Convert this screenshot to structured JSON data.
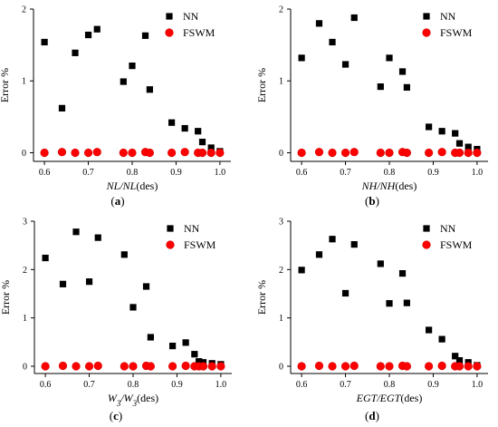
{
  "colors": {
    "nn": "#000000",
    "fswm": "#ff0000",
    "fswm_stroke": "#d40000",
    "axis": "#000000"
  },
  "chart_data": [
    {
      "type": "scatter",
      "panel_label": "(a)",
      "xlabel_parts": [
        {
          "text": "NL/NL",
          "italic": true
        },
        {
          "text": "(des)",
          "italic": false
        }
      ],
      "ylabel": "Error %",
      "xlim": [
        0.575,
        1.025
      ],
      "ylim": [
        -0.12,
        2.0
      ],
      "x_ticks": [
        0.6,
        0.7,
        0.8,
        0.9,
        1.0
      ],
      "x_tick_labels": [
        "0.6",
        "0.7",
        "0.8",
        "0.9",
        "1.0"
      ],
      "y_ticks": [
        0,
        1,
        2
      ],
      "y_tick_labels": [
        "0",
        "1",
        "2"
      ],
      "legend_position": "top-right",
      "series": [
        {
          "name": "NN",
          "marker": "square",
          "x": [
            0.6,
            0.64,
            0.67,
            0.7,
            0.72,
            0.78,
            0.8,
            0.83,
            0.84,
            0.89,
            0.92,
            0.95,
            0.96,
            0.98,
            1.0
          ],
          "y": [
            1.54,
            0.62,
            1.39,
            1.64,
            1.72,
            0.99,
            1.21,
            1.63,
            0.88,
            0.42,
            0.34,
            0.3,
            0.15,
            0.07,
            0.02
          ]
        },
        {
          "name": "FSWM",
          "marker": "circle",
          "x": [
            0.6,
            0.64,
            0.67,
            0.7,
            0.72,
            0.78,
            0.8,
            0.83,
            0.84,
            0.89,
            0.92,
            0.95,
            0.96,
            0.98,
            1.0
          ],
          "y": [
            0.0,
            0.01,
            0.0,
            0.0,
            0.01,
            0.0,
            0.0,
            0.01,
            0.0,
            0.0,
            0.01,
            0.0,
            0.0,
            0.0,
            0.0
          ]
        }
      ]
    },
    {
      "type": "scatter",
      "panel_label": "(b)",
      "xlabel_parts": [
        {
          "text": "NH/NH",
          "italic": true
        },
        {
          "text": "(des)",
          "italic": false
        }
      ],
      "ylabel": "Error %",
      "xlim": [
        0.575,
        1.025
      ],
      "ylim": [
        -0.12,
        2.0
      ],
      "x_ticks": [
        0.6,
        0.7,
        0.8,
        0.9,
        1.0
      ],
      "x_tick_labels": [
        "0.6",
        "0.7",
        "0.8",
        "0.9",
        "1.0"
      ],
      "y_ticks": [
        0,
        1,
        2
      ],
      "y_tick_labels": [
        "0",
        "1",
        "2"
      ],
      "legend_position": "top-right",
      "series": [
        {
          "name": "NN",
          "marker": "square",
          "x": [
            0.6,
            0.64,
            0.67,
            0.7,
            0.72,
            0.78,
            0.8,
            0.83,
            0.84,
            0.89,
            0.92,
            0.95,
            0.96,
            0.98,
            1.0
          ],
          "y": [
            1.32,
            1.8,
            1.54,
            1.23,
            1.88,
            0.92,
            1.32,
            1.13,
            0.91,
            0.36,
            0.3,
            0.27,
            0.13,
            0.08,
            0.05
          ]
        },
        {
          "name": "FSWM",
          "marker": "circle",
          "x": [
            0.6,
            0.64,
            0.67,
            0.7,
            0.72,
            0.78,
            0.8,
            0.83,
            0.84,
            0.89,
            0.92,
            0.95,
            0.96,
            0.98,
            1.0
          ],
          "y": [
            0.0,
            0.01,
            0.0,
            0.0,
            0.01,
            0.0,
            0.0,
            0.01,
            0.0,
            0.0,
            0.01,
            0.0,
            0.0,
            0.0,
            0.0
          ]
        }
      ]
    },
    {
      "type": "scatter",
      "panel_label": "(c)",
      "xlabel_parts": [
        {
          "text": "W",
          "italic": true
        },
        {
          "text": "3",
          "italic": true,
          "sub": true
        },
        {
          "text": "/W",
          "italic": true
        },
        {
          "text": "3",
          "italic": true,
          "sub": true
        },
        {
          "text": "(des)",
          "italic": false
        }
      ],
      "ylabel": "Error %",
      "xlim": [
        0.575,
        1.025
      ],
      "ylim": [
        -0.15,
        3.0
      ],
      "x_ticks": [
        0.6,
        0.7,
        0.8,
        0.9,
        1.0
      ],
      "x_tick_labels": [
        "0.6",
        "0.7",
        "0.8",
        "0.9",
        "1.0"
      ],
      "y_ticks": [
        0,
        1,
        2,
        3
      ],
      "y_tick_labels": [
        "0",
        "1",
        "2",
        "3"
      ],
      "legend_position": "top-right",
      "series": [
        {
          "name": "NN",
          "marker": "square",
          "x": [
            0.6,
            0.64,
            0.67,
            0.7,
            0.72,
            0.78,
            0.8,
            0.83,
            0.84,
            0.89,
            0.92,
            0.94,
            0.95,
            0.96,
            0.98,
            1.0
          ],
          "y": [
            2.24,
            1.7,
            2.78,
            1.75,
            2.66,
            2.31,
            1.22,
            1.65,
            0.6,
            0.42,
            0.49,
            0.25,
            0.1,
            0.08,
            0.06,
            0.04
          ]
        },
        {
          "name": "FSWM",
          "marker": "circle",
          "x": [
            0.6,
            0.64,
            0.67,
            0.7,
            0.72,
            0.78,
            0.8,
            0.83,
            0.84,
            0.89,
            0.92,
            0.94,
            0.95,
            0.96,
            0.98,
            1.0
          ],
          "y": [
            0.0,
            0.01,
            0.0,
            0.0,
            0.01,
            0.0,
            0.0,
            0.01,
            0.0,
            0.0,
            0.01,
            0.0,
            0.0,
            0.0,
            0.0,
            0.0
          ]
        }
      ]
    },
    {
      "type": "scatter",
      "panel_label": "(d)",
      "xlabel_parts": [
        {
          "text": "EGT/EGT",
          "italic": true
        },
        {
          "text": "(des)",
          "italic": false
        }
      ],
      "ylabel": "Error %",
      "xlim": [
        0.575,
        1.025
      ],
      "ylim": [
        -0.15,
        3.0
      ],
      "x_ticks": [
        0.6,
        0.7,
        0.8,
        0.9,
        1.0
      ],
      "x_tick_labels": [
        "0.6",
        "0.7",
        "0.8",
        "0.9",
        "1.0"
      ],
      "y_ticks": [
        0,
        1,
        2,
        3
      ],
      "y_tick_labels": [
        "0",
        "1",
        "2",
        "3"
      ],
      "legend_position": "top-right",
      "series": [
        {
          "name": "NN",
          "marker": "square",
          "x": [
            0.6,
            0.64,
            0.67,
            0.7,
            0.72,
            0.78,
            0.8,
            0.83,
            0.84,
            0.89,
            0.92,
            0.95,
            0.96,
            0.98,
            1.0
          ],
          "y": [
            1.99,
            2.31,
            2.63,
            1.51,
            2.52,
            2.12,
            1.3,
            1.92,
            1.31,
            0.75,
            0.56,
            0.21,
            0.12,
            0.08,
            0.02
          ]
        },
        {
          "name": "FSWM",
          "marker": "circle",
          "x": [
            0.6,
            0.64,
            0.67,
            0.7,
            0.72,
            0.78,
            0.8,
            0.83,
            0.84,
            0.89,
            0.92,
            0.95,
            0.96,
            0.98,
            1.0
          ],
          "y": [
            0.0,
            0.01,
            0.0,
            0.0,
            0.01,
            0.0,
            0.0,
            0.01,
            0.0,
            0.0,
            0.01,
            0.0,
            0.0,
            0.0,
            0.0
          ]
        }
      ]
    }
  ]
}
